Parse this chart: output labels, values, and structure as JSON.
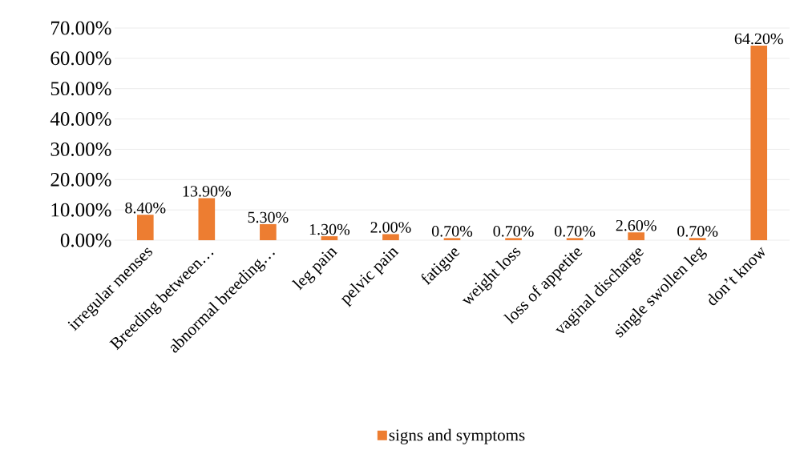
{
  "chart_data": {
    "type": "bar",
    "categories": [
      "irregular menses",
      "Breeding between…",
      "abnormal breeding…",
      "leg pain",
      "pelvic pain",
      "fatigue",
      "weight loss",
      "loss of appetite",
      "vaginal discharge",
      "single swollen leg",
      "don’t know"
    ],
    "series": [
      {
        "name": "signs and symptoms",
        "color": "#ed7d31",
        "values": [
          8.4,
          13.9,
          5.3,
          1.3,
          2.0,
          0.7,
          0.7,
          0.7,
          2.6,
          0.7,
          64.2
        ],
        "value_labels": [
          "8.40%",
          "13.90%",
          "5.30%",
          "1.30%",
          "2.00%",
          "0.70%",
          "0.70%",
          "0.70%",
          "2.60%",
          "0.70%",
          "64.20%"
        ]
      }
    ],
    "ylim": [
      0,
      70
    ],
    "yticks": [
      {
        "value": 0,
        "label": "0.00%"
      },
      {
        "value": 10,
        "label": "10.00%"
      },
      {
        "value": 20,
        "label": "20.00%"
      },
      {
        "value": 30,
        "label": "30.00%"
      },
      {
        "value": 40,
        "label": "40.00%"
      },
      {
        "value": 50,
        "label": "50.00%"
      },
      {
        "value": 60,
        "label": "60.00%"
      },
      {
        "value": 70,
        "label": "70.00%"
      }
    ],
    "grid": "y",
    "legend": "bottom"
  }
}
